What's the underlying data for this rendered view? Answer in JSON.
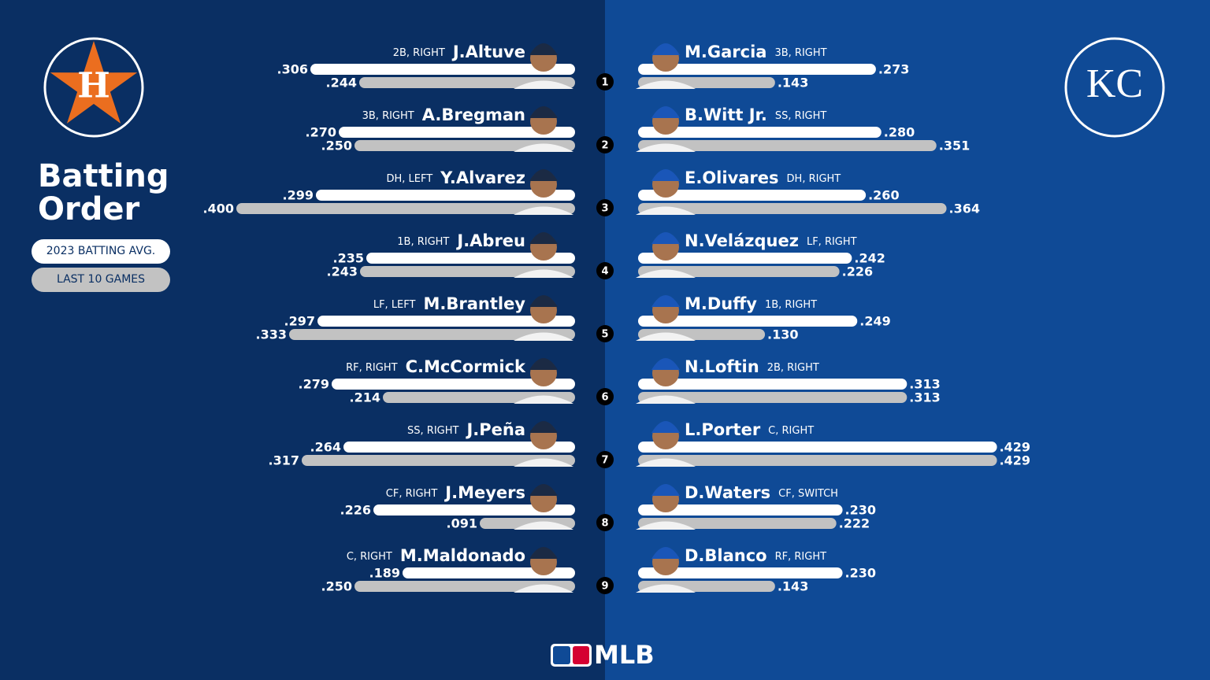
{
  "chart_data": {
    "type": "bar",
    "title": "Batting Order",
    "legend": [
      {
        "name": "2023 BATTING AVG.",
        "color": "#ffffff"
      },
      {
        "name": "LAST 10 GAMES",
        "color": "#c2c2c2"
      }
    ],
    "logos": [
      "H",
      "KC"
    ],
    "footer": "MLB",
    "order": [
      1,
      2,
      3,
      4,
      5,
      6,
      7,
      8,
      9
    ],
    "teams": [
      {
        "side": "left",
        "players": [
          {
            "name": "J.Altuve",
            "info": "2B, RIGHT",
            "values": [
              0.306,
              0.244
            ],
            "value_labels": [
              ".306",
              ".244"
            ]
          },
          {
            "name": "A.Bregman",
            "info": "3B, RIGHT",
            "values": [
              0.27,
              0.25
            ],
            "value_labels": [
              ".270",
              ".250"
            ]
          },
          {
            "name": "Y.Alvarez",
            "info": "DH, LEFT",
            "values": [
              0.299,
              0.4
            ],
            "value_labels": [
              ".299",
              ".400"
            ]
          },
          {
            "name": "J.Abreu",
            "info": "1B, RIGHT",
            "values": [
              0.235,
              0.243
            ],
            "value_labels": [
              ".235",
              ".243"
            ]
          },
          {
            "name": "M.Brantley",
            "info": "LF, LEFT",
            "values": [
              0.297,
              0.333
            ],
            "value_labels": [
              ".297",
              ".333"
            ]
          },
          {
            "name": "C.McCormick",
            "info": "RF, RIGHT",
            "values": [
              0.279,
              0.214
            ],
            "value_labels": [
              ".279",
              ".214"
            ]
          },
          {
            "name": "J.Peña",
            "info": "SS, RIGHT",
            "values": [
              0.264,
              0.317
            ],
            "value_labels": [
              ".264",
              ".317"
            ]
          },
          {
            "name": "J.Meyers",
            "info": "CF, RIGHT",
            "values": [
              0.226,
              0.091
            ],
            "value_labels": [
              ".226",
              ".091"
            ]
          },
          {
            "name": "M.Maldonado",
            "info": "C, RIGHT",
            "values": [
              0.189,
              0.25
            ],
            "value_labels": [
              ".189",
              ".250"
            ]
          }
        ]
      },
      {
        "side": "right",
        "players": [
          {
            "name": "M.Garcia",
            "info": "3B, RIGHT",
            "values": [
              0.273,
              0.143
            ],
            "value_labels": [
              ".273",
              ".143"
            ]
          },
          {
            "name": "B.Witt Jr.",
            "info": "SS, RIGHT",
            "values": [
              0.28,
              0.351
            ],
            "value_labels": [
              ".280",
              ".351"
            ]
          },
          {
            "name": "E.Olivares",
            "info": "DH, RIGHT",
            "values": [
              0.26,
              0.364
            ],
            "value_labels": [
              ".260",
              ".364"
            ]
          },
          {
            "name": "N.Velázquez",
            "info": "LF, RIGHT",
            "values": [
              0.242,
              0.226
            ],
            "value_labels": [
              ".242",
              ".226"
            ]
          },
          {
            "name": "M.Duffy",
            "info": "1B, RIGHT",
            "values": [
              0.249,
              0.13
            ],
            "value_labels": [
              ".249",
              ".130"
            ]
          },
          {
            "name": "N.Loftin",
            "info": "2B, RIGHT",
            "values": [
              0.313,
              0.313
            ],
            "value_labels": [
              ".313",
              ".313"
            ]
          },
          {
            "name": "L.Porter",
            "info": "C, RIGHT",
            "values": [
              0.429,
              0.429
            ],
            "value_labels": [
              ".429",
              ".429"
            ]
          },
          {
            "name": "D.Waters",
            "info": "CF, SWITCH",
            "values": [
              0.23,
              0.222
            ],
            "value_labels": [
              ".230",
              ".222"
            ]
          },
          {
            "name": "D.Blanco",
            "info": "RF, RIGHT",
            "values": [
              0.23,
              0.143
            ],
            "value_labels": [
              ".230",
              ".143"
            ]
          }
        ]
      }
    ]
  }
}
